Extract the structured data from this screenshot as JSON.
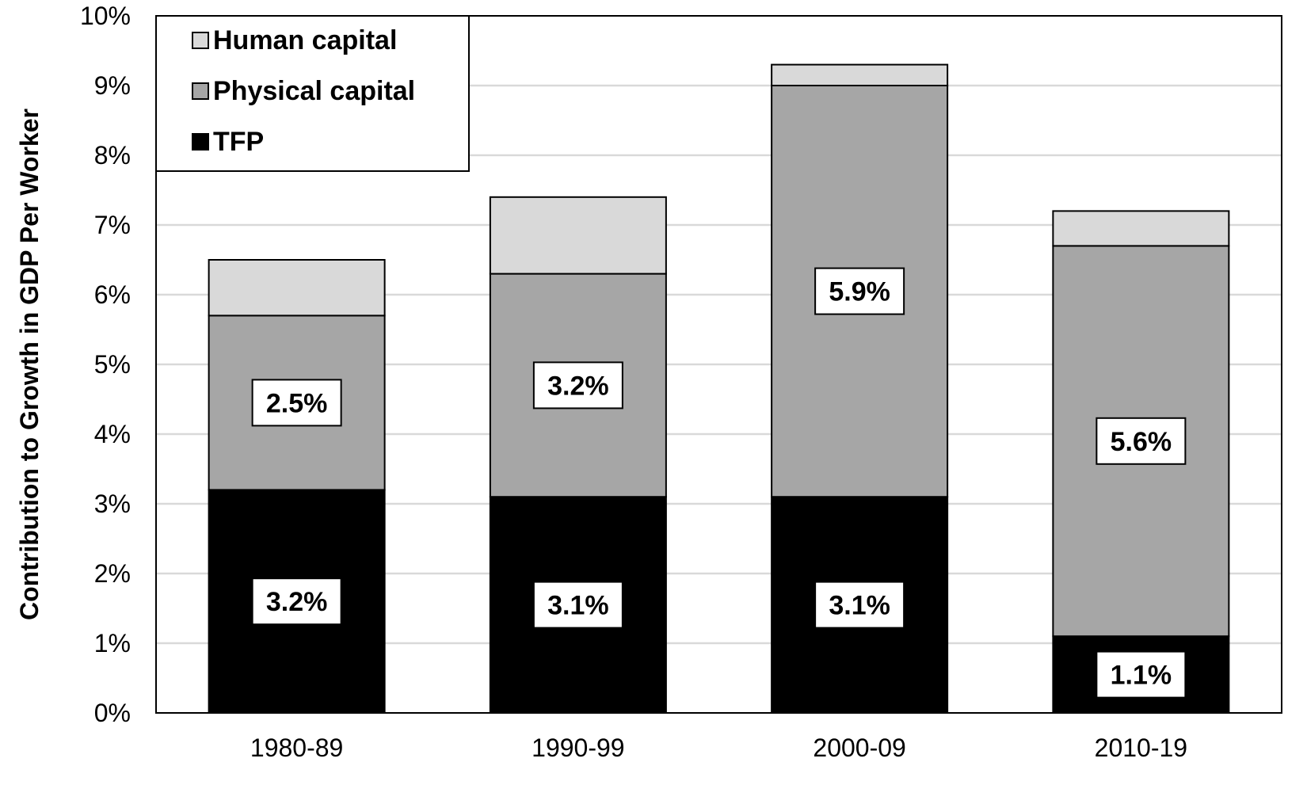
{
  "chart_data": {
    "type": "bar",
    "stacked": true,
    "title": "",
    "xlabel": "",
    "ylabel": "Contribution to Growth in GDP Per Worker",
    "ylim": [
      0,
      10
    ],
    "y_tick_format": "percent",
    "y_ticks": [
      0,
      1,
      2,
      3,
      4,
      5,
      6,
      7,
      8,
      9,
      10
    ],
    "y_tick_labels": [
      "0%",
      "1%",
      "2%",
      "3%",
      "4%",
      "5%",
      "6%",
      "7%",
      "8%",
      "9%",
      "10%"
    ],
    "grid": true,
    "legend_position": "top-left",
    "categories": [
      "1980-89",
      "1990-99",
      "2000-09",
      "2010-19"
    ],
    "series": [
      {
        "name": "TFP",
        "color": "#000000",
        "values": [
          3.2,
          3.1,
          3.1,
          1.1
        ],
        "labels": [
          "3.2%",
          "3.1%",
          "3.1%",
          "1.1%"
        ]
      },
      {
        "name": "Physical capital",
        "color": "#a6a6a6",
        "values": [
          2.5,
          3.2,
          5.9,
          5.6
        ],
        "labels": [
          "2.5%",
          "3.2%",
          "5.9%",
          "5.6%"
        ]
      },
      {
        "name": "Human capital",
        "color": "#d9d9d9",
        "values": [
          0.8,
          1.1,
          0.3,
          0.5
        ],
        "labels": [
          "",
          "",
          "",
          ""
        ]
      }
    ],
    "legend_order": [
      "Human capital",
      "Physical capital",
      "TFP"
    ]
  }
}
